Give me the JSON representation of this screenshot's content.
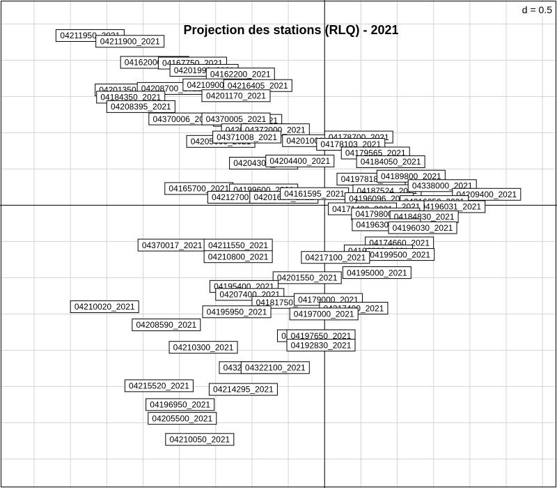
{
  "chart_data": {
    "type": "scatter",
    "title": "Projection des stations (RLQ) - 2021",
    "scale_label": "d = 0.5",
    "grid_step": 0.5,
    "grid": true,
    "xlim": [
      -4.47,
      3.2
    ],
    "ylim": [
      -3.9,
      2.83
    ],
    "points": [
      {
        "label": "04211950_2021",
        "x": -3.23,
        "y": 2.34
      },
      {
        "label": "04211900_2021",
        "x": -2.68,
        "y": 2.26
      },
      {
        "label": "04162000_2021",
        "x": -2.34,
        "y": 1.97
      },
      {
        "label": "04167750_2021",
        "x": -1.82,
        "y": 1.96
      },
      {
        "label": "04201990_2021",
        "x": -1.66,
        "y": 1.86
      },
      {
        "label": "04162200_2021",
        "x": -1.16,
        "y": 1.81
      },
      {
        "label": "04201350_2021",
        "x": -2.69,
        "y": 1.59
      },
      {
        "label": "04208700_2021",
        "x": -2.11,
        "y": 1.61
      },
      {
        "label": "04210900_2021",
        "x": -1.48,
        "y": 1.66
      },
      {
        "label": "04216405_2021",
        "x": -0.92,
        "y": 1.65
      },
      {
        "label": "04201170_2021",
        "x": -1.22,
        "y": 1.51
      },
      {
        "label": "04184350_2021",
        "x": -2.67,
        "y": 1.49
      },
      {
        "label": "04208395_2021",
        "x": -2.53,
        "y": 1.36
      },
      {
        "label": "04370006_2021",
        "x": -1.95,
        "y": 1.19
      },
      {
        "label": "04377001_2021",
        "x": -1.06,
        "y": 1.17
      },
      {
        "label": "04370005_2021",
        "x": -1.22,
        "y": 1.19
      },
      {
        "label": "04208350_2021",
        "x": -0.95,
        "y": 1.04
      },
      {
        "label": "04372000_2021",
        "x": -0.68,
        "y": 1.04
      },
      {
        "label": "04205000_2021",
        "x": -1.43,
        "y": 0.88
      },
      {
        "label": "04371008_2021",
        "x": -1.07,
        "y": 0.94
      },
      {
        "label": "04201000_2021",
        "x": -0.11,
        "y": 0.89
      },
      {
        "label": "04204300_2021",
        "x": -0.84,
        "y": 0.58
      },
      {
        "label": "04204400_2021",
        "x": -0.34,
        "y": 0.61
      },
      {
        "label": "04178700_2021",
        "x": 0.47,
        "y": 0.94
      },
      {
        "label": "04178103_2021",
        "x": 0.36,
        "y": 0.84
      },
      {
        "label": "04179565_2021",
        "x": 0.7,
        "y": 0.72
      },
      {
        "label": "04184050_2021",
        "x": 0.91,
        "y": 0.6
      },
      {
        "label": "04165700_2021",
        "x": -1.73,
        "y": 0.23
      },
      {
        "label": "04199600_2021",
        "x": -0.84,
        "y": 0.21
      },
      {
        "label": "04212700_2021",
        "x": -1.14,
        "y": 0.11
      },
      {
        "label": "04201600_2021",
        "x": -0.56,
        "y": 0.11
      },
      {
        "label": "04161595_2021",
        "x": -0.14,
        "y": 0.16
      },
      {
        "label": "04197818_2021",
        "x": 0.64,
        "y": 0.36
      },
      {
        "label": "04189800_2021",
        "x": 1.19,
        "y": 0.4
      },
      {
        "label": "04187524_2021",
        "x": 0.86,
        "y": 0.2
      },
      {
        "label": "04338000_2021",
        "x": 1.62,
        "y": 0.27
      },
      {
        "label": "04209400_2021",
        "x": 2.23,
        "y": 0.15
      },
      {
        "label": "04196096_2021",
        "x": 0.75,
        "y": 0.09
      },
      {
        "label": "04216050_2021",
        "x": 1.51,
        "y": 0.05
      },
      {
        "label": "04196031_2021",
        "x": 1.74,
        "y": -0.02
      },
      {
        "label": "04192930_2021",
        "x": 0.9,
        "y": -0.02
      },
      {
        "label": "04171400_2021",
        "x": 0.52,
        "y": -0.05
      },
      {
        "label": "04179800_2021",
        "x": 0.84,
        "y": -0.12
      },
      {
        "label": "04184830_2021",
        "x": 1.37,
        "y": -0.16
      },
      {
        "label": "04196300_2021",
        "x": 0.85,
        "y": -0.27
      },
      {
        "label": "04196030_2021",
        "x": 1.35,
        "y": -0.31
      },
      {
        "label": "04174660_2021",
        "x": 1.03,
        "y": -0.52
      },
      {
        "label": "04196008_2021",
        "x": 0.74,
        "y": -0.63
      },
      {
        "label": "04199500_2021",
        "x": 1.04,
        "y": -0.68
      },
      {
        "label": "04370017_2021",
        "x": -2.1,
        "y": -0.55
      },
      {
        "label": "04211550_2021",
        "x": -1.19,
        "y": -0.55
      },
      {
        "label": "04210800_2021",
        "x": -1.19,
        "y": -0.71
      },
      {
        "label": "04217100_2021",
        "x": 0.15,
        "y": -0.72
      },
      {
        "label": "04195000_2021",
        "x": 0.72,
        "y": -0.93
      },
      {
        "label": "04201550_2021",
        "x": -0.24,
        "y": -1.0
      },
      {
        "label": "04195400_2021",
        "x": -1.11,
        "y": -1.12
      },
      {
        "label": "04207400_2021",
        "x": -1.03,
        "y": -1.23
      },
      {
        "label": "04181750_2021",
        "x": -0.53,
        "y": -1.34
      },
      {
        "label": "04179000_2021",
        "x": 0.05,
        "y": -1.3
      },
      {
        "label": "04217400_2021",
        "x": 0.4,
        "y": -1.42
      },
      {
        "label": "04197000_2021",
        "x": -0.01,
        "y": -1.5
      },
      {
        "label": "04210020_2021",
        "x": -3.03,
        "y": -1.4
      },
      {
        "label": "04195950_2021",
        "x": -1.21,
        "y": -1.47
      },
      {
        "label": "04208590_2021",
        "x": -2.18,
        "y": -1.65
      },
      {
        "label": "04199865_2021",
        "x": -0.18,
        "y": -1.8
      },
      {
        "label": "04197650_2021",
        "x": -0.05,
        "y": -1.8
      },
      {
        "label": "04192830_2021",
        "x": -0.05,
        "y": -1.93
      },
      {
        "label": "04210300_2021",
        "x": -1.67,
        "y": -1.96
      },
      {
        "label": "04322000_2021",
        "x": -0.98,
        "y": -2.24
      },
      {
        "label": "04322100_2021",
        "x": -0.68,
        "y": -2.24
      },
      {
        "label": "04215520_2021",
        "x": -2.28,
        "y": -2.49
      },
      {
        "label": "04214295_2021",
        "x": -1.12,
        "y": -2.54
      },
      {
        "label": "04196950_2021",
        "x": -1.99,
        "y": -2.75
      },
      {
        "label": "04205500_2021",
        "x": -1.96,
        "y": -2.94
      },
      {
        "label": "04210050_2021",
        "x": -1.72,
        "y": -3.23
      }
    ]
  }
}
